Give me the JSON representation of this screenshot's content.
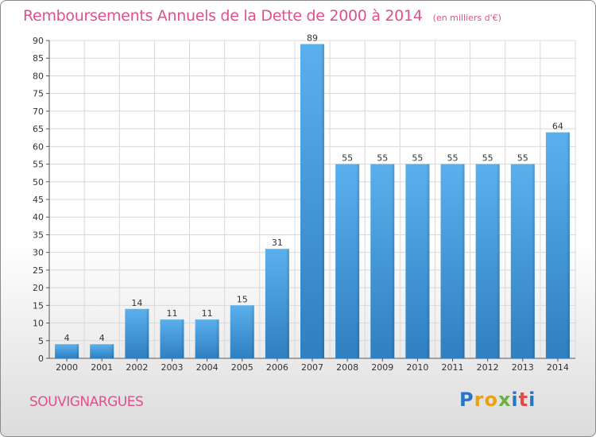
{
  "chart_data": {
    "type": "bar",
    "title": "Remboursements Annuels de la Dette de 2000 à 2014",
    "subtitle": "(en milliers d'€)",
    "categories": [
      "2000",
      "2001",
      "2002",
      "2003",
      "2004",
      "2005",
      "2006",
      "2007",
      "2008",
      "2009",
      "2010",
      "2011",
      "2012",
      "2013",
      "2014"
    ],
    "values": [
      4,
      4,
      14,
      11,
      11,
      15,
      31,
      89,
      55,
      55,
      55,
      55,
      55,
      55,
      64
    ],
    "ylim": [
      0,
      90
    ],
    "yticks": [
      0,
      5,
      10,
      15,
      20,
      25,
      30,
      35,
      40,
      45,
      50,
      55,
      60,
      65,
      70,
      75,
      80,
      85,
      90
    ],
    "grid": true,
    "bar_color": "#4a9fe0"
  },
  "place_name": "SOUVIGNARGUES",
  "logo": {
    "letters": [
      "P",
      "r",
      "o",
      "x",
      "i",
      "t",
      "i"
    ],
    "colors": [
      "#2a74c6",
      "#e9a11a",
      "#e9a11a",
      "#6cb13c",
      "#2a74c6",
      "#e04a4a",
      "#2a74c6"
    ]
  },
  "colors": {
    "title": "#e0508a",
    "axis": "#555555",
    "grid": "#d8d8d8"
  }
}
